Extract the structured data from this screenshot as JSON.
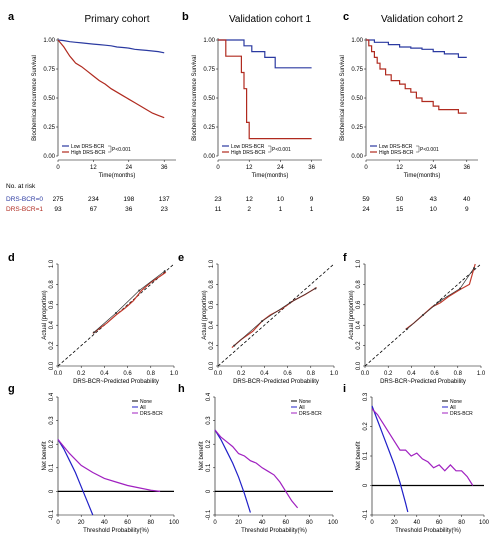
{
  "chart_data": [
    {
      "panel": "a",
      "type": "line",
      "title": "Primary cohort",
      "xlabel": "Time(months)",
      "ylabel": "Biochemical recurrence Survival",
      "xlim": [
        0,
        40
      ],
      "ylim": [
        0,
        1
      ],
      "xticks": [
        "0",
        "12",
        "24",
        "36"
      ],
      "yticks": [
        "0.00",
        "0.25",
        "0.50",
        "0.75",
        "1.00"
      ],
      "series": [
        {
          "name": "Low DRS-BCR",
          "color": "#2b3aa1",
          "x": [
            0,
            2,
            4,
            6,
            8,
            10,
            12,
            14,
            16,
            18,
            20,
            22,
            24,
            26,
            28,
            30,
            32,
            34,
            36
          ],
          "y": [
            1.0,
            0.995,
            0.985,
            0.98,
            0.975,
            0.97,
            0.965,
            0.96,
            0.955,
            0.95,
            0.94,
            0.935,
            0.93,
            0.92,
            0.915,
            0.91,
            0.905,
            0.9,
            0.89
          ]
        },
        {
          "name": "High DRS-BCR",
          "color": "#b02a1f",
          "x": [
            0,
            1,
            2,
            3,
            4,
            5,
            6,
            8,
            10,
            12,
            14,
            16,
            18,
            20,
            22,
            24,
            26,
            28,
            30,
            32,
            34,
            35,
            36
          ],
          "y": [
            1.0,
            0.97,
            0.94,
            0.9,
            0.86,
            0.83,
            0.8,
            0.77,
            0.73,
            0.69,
            0.65,
            0.62,
            0.58,
            0.55,
            0.52,
            0.49,
            0.46,
            0.43,
            0.4,
            0.37,
            0.35,
            0.34,
            0.33
          ]
        }
      ],
      "pvalue": "P<0.001",
      "risk_table": {
        "title": "No. at risk",
        "rows": [
          {
            "label": "DRS-BCR=0",
            "color": "#2b3aa1",
            "values": [
              "275",
              "234",
              "198",
              "137"
            ]
          },
          {
            "label": "DRS-BCR=1",
            "color": "#b02a1f",
            "values": [
              "93",
              "67",
              "36",
              "23"
            ]
          }
        ]
      }
    },
    {
      "panel": "b",
      "type": "line",
      "title": "Validation cohort 1",
      "xlabel": "Time(months)",
      "ylabel": "Biochemical recurrence Survival",
      "xlim": [
        0,
        40
      ],
      "ylim": [
        0,
        1
      ],
      "xticks": [
        "0",
        "12",
        "24",
        "36"
      ],
      "yticks": [
        "0.00",
        "0.25",
        "0.50",
        "0.75",
        "1.00"
      ],
      "series": [
        {
          "name": "Low DRS-BCR",
          "color": "#2b3aa1",
          "x": [
            0,
            10,
            10,
            13,
            13,
            18,
            18,
            22,
            22,
            36
          ],
          "y": [
            1.0,
            1.0,
            0.95,
            0.95,
            0.9,
            0.9,
            0.85,
            0.85,
            0.76,
            0.76
          ]
        },
        {
          "name": "High DRS-BCR",
          "color": "#b02a1f",
          "x": [
            0,
            3,
            3,
            9,
            9,
            10,
            10,
            11,
            11,
            12,
            12,
            36
          ],
          "y": [
            1.0,
            1.0,
            0.86,
            0.86,
            0.72,
            0.72,
            0.58,
            0.58,
            0.29,
            0.29,
            0.15,
            0.15
          ]
        }
      ],
      "pvalue": "P<0.001",
      "risk_table": {
        "rows": [
          {
            "values": [
              "23",
              "12",
              "10",
              "9"
            ]
          },
          {
            "values": [
              "11",
              "2",
              "1",
              "1"
            ]
          }
        ]
      }
    },
    {
      "panel": "c",
      "type": "line",
      "title": "Validation cohort 2",
      "xlabel": "Time(months)",
      "ylabel": "Biochemical recurrence Survival",
      "xlim": [
        0,
        40
      ],
      "ylim": [
        0,
        1
      ],
      "xticks": [
        "0",
        "12",
        "24",
        "36"
      ],
      "yticks": [
        "0.00",
        "0.25",
        "0.50",
        "0.75",
        "1.00"
      ],
      "series": [
        {
          "name": "Low DRS-BCR",
          "color": "#2b3aa1",
          "x": [
            0,
            3,
            3,
            8,
            8,
            12,
            12,
            16,
            16,
            20,
            20,
            24,
            24,
            28,
            28,
            33,
            33,
            36
          ],
          "y": [
            1.0,
            1.0,
            0.98,
            0.98,
            0.96,
            0.96,
            0.94,
            0.94,
            0.93,
            0.93,
            0.92,
            0.92,
            0.9,
            0.9,
            0.88,
            0.88,
            0.85,
            0.85
          ]
        },
        {
          "name": "High DRS-BCR",
          "color": "#b02a1f",
          "x": [
            0,
            1,
            1,
            2,
            2,
            3,
            3,
            4,
            4,
            5,
            5,
            7,
            7,
            9,
            9,
            12,
            12,
            14,
            14,
            16,
            16,
            18,
            18,
            20,
            20,
            24,
            24,
            26,
            26,
            33,
            33,
            36
          ],
          "y": [
            1.0,
            1.0,
            0.95,
            0.95,
            0.9,
            0.9,
            0.85,
            0.85,
            0.8,
            0.8,
            0.75,
            0.75,
            0.7,
            0.7,
            0.65,
            0.65,
            0.62,
            0.62,
            0.58,
            0.58,
            0.55,
            0.55,
            0.5,
            0.5,
            0.47,
            0.47,
            0.43,
            0.43,
            0.4,
            0.4,
            0.37,
            0.37
          ]
        }
      ],
      "pvalue": "P<0.001",
      "risk_table": {
        "rows": [
          {
            "values": [
              "59",
              "50",
              "43",
              "40"
            ]
          },
          {
            "values": [
              "24",
              "15",
              "10",
              "9"
            ]
          }
        ]
      }
    },
    {
      "panel": "d",
      "type": "line",
      "xlabel": "DRS-BCR~Predicted Probability",
      "ylabel": "Actual (proportion)",
      "xlim": [
        0,
        1
      ],
      "ylim": [
        0,
        1
      ],
      "xticks": [
        "0.0",
        "0.2",
        "0.4",
        "0.6",
        "0.8",
        "1.0"
      ],
      "yticks": [
        "0.0",
        "0.2",
        "0.4",
        "0.6",
        "0.8",
        "1.0"
      ],
      "series": [
        {
          "role": "calibration",
          "color": "#c0392b",
          "x": [
            0.3,
            0.42,
            0.5,
            0.58,
            0.65,
            0.72,
            0.8,
            0.88,
            0.93
          ],
          "y": [
            0.32,
            0.42,
            0.5,
            0.57,
            0.64,
            0.74,
            0.82,
            0.88,
            0.92
          ]
        },
        {
          "role": "observed",
          "color": "#333333",
          "x": [
            0.31,
            0.5,
            0.7,
            0.92
          ],
          "y": [
            0.33,
            0.52,
            0.74,
            0.93
          ]
        }
      ]
    },
    {
      "panel": "e",
      "type": "line",
      "xlabel": "DRS-BCR~Predicted Probability",
      "ylabel": "Actual (proportion)",
      "xlim": [
        0,
        1
      ],
      "ylim": [
        0,
        1
      ],
      "xticks": [
        "0.0",
        "0.2",
        "0.4",
        "0.6",
        "0.8",
        "1.0"
      ],
      "yticks": [
        "0.0",
        "0.2",
        "0.4",
        "0.6",
        "0.8",
        "1.0"
      ],
      "series": [
        {
          "role": "calibration",
          "color": "#c0392b",
          "x": [
            0.12,
            0.2,
            0.3,
            0.38,
            0.45,
            0.55,
            0.65,
            0.75,
            0.85
          ],
          "y": [
            0.18,
            0.26,
            0.34,
            0.44,
            0.5,
            0.56,
            0.64,
            0.7,
            0.77
          ]
        },
        {
          "role": "observed",
          "color": "#333333",
          "x": [
            0.14,
            0.38,
            0.62,
            0.84
          ],
          "y": [
            0.2,
            0.44,
            0.62,
            0.76
          ]
        }
      ]
    },
    {
      "panel": "f",
      "type": "line",
      "xlabel": "DRS-BCR~Predicted Probability",
      "ylabel": "Actual (proportion)",
      "xlim": [
        0,
        1
      ],
      "ylim": [
        0,
        1
      ],
      "xticks": [
        "0.0",
        "0.2",
        "0.4",
        "0.6",
        "0.8",
        "1.0"
      ],
      "yticks": [
        "0.0",
        "0.2",
        "0.4",
        "0.6",
        "0.8",
        "1.0"
      ],
      "series": [
        {
          "role": "calibration",
          "color": "#c0392b",
          "x": [
            0.35,
            0.42,
            0.5,
            0.58,
            0.65,
            0.72,
            0.82,
            0.9,
            0.95
          ],
          "y": [
            0.36,
            0.42,
            0.5,
            0.58,
            0.62,
            0.68,
            0.75,
            0.8,
            1.0
          ]
        },
        {
          "role": "observed",
          "color": "#333333",
          "x": [
            0.36,
            0.5,
            0.65,
            0.82,
            0.94
          ],
          "y": [
            0.36,
            0.5,
            0.64,
            0.76,
            0.96
          ]
        }
      ]
    },
    {
      "panel": "g",
      "type": "line",
      "xlabel": "Threshold Probability(%)",
      "ylabel": "Net benefit",
      "xlim": [
        0,
        100
      ],
      "ylim": [
        -0.1,
        0.4
      ],
      "xticks": [
        "0",
        "20",
        "40",
        "60",
        "80",
        "100"
      ],
      "yticks": [
        "-0.1",
        "0",
        "0.1",
        "0.2",
        "0.3",
        "0.4"
      ],
      "series": [
        {
          "name": "None",
          "color": "#000000",
          "x": [
            0,
            100
          ],
          "y": [
            0,
            0
          ]
        },
        {
          "name": "All",
          "color": "#2020c8",
          "x": [
            0,
            5,
            10,
            15,
            20,
            25,
            30
          ],
          "y": [
            0.22,
            0.18,
            0.13,
            0.08,
            0.02,
            -0.04,
            -0.1
          ]
        },
        {
          "name": "DRS-BCR",
          "color": "#a020c0",
          "x": [
            0,
            5,
            10,
            20,
            30,
            40,
            50,
            60,
            70,
            80,
            88
          ],
          "y": [
            0.22,
            0.19,
            0.16,
            0.11,
            0.08,
            0.055,
            0.04,
            0.025,
            0.015,
            0.005,
            0.0
          ]
        }
      ]
    },
    {
      "panel": "h",
      "type": "line",
      "xlabel": "Threshold Probability(%)",
      "ylabel": "Net benefit",
      "xlim": [
        0,
        100
      ],
      "ylim": [
        -0.1,
        0.4
      ],
      "xticks": [
        "0",
        "20",
        "40",
        "60",
        "80",
        "100"
      ],
      "yticks": [
        "-0.1",
        "0",
        "0.1",
        "0.2",
        "0.3",
        "0.4"
      ],
      "series": [
        {
          "name": "None",
          "color": "#000000",
          "x": [
            0,
            100
          ],
          "y": [
            0,
            0
          ]
        },
        {
          "name": "All",
          "color": "#2020c8",
          "x": [
            0,
            5,
            10,
            15,
            20,
            25,
            30
          ],
          "y": [
            0.26,
            0.22,
            0.17,
            0.12,
            0.06,
            -0.01,
            -0.09
          ]
        },
        {
          "name": "DRS-BCR",
          "color": "#a020c0",
          "x": [
            0,
            5,
            10,
            15,
            20,
            25,
            30,
            35,
            40,
            45,
            50,
            55,
            60,
            65,
            70
          ],
          "y": [
            0.26,
            0.23,
            0.21,
            0.19,
            0.16,
            0.15,
            0.13,
            0.12,
            0.1,
            0.085,
            0.07,
            0.04,
            0.0,
            -0.04,
            -0.07
          ]
        }
      ]
    },
    {
      "panel": "i",
      "type": "line",
      "xlabel": "Threshold Probability(%)",
      "ylabel": "Net benefit",
      "xlim": [
        0,
        100
      ],
      "ylim": [
        -0.1,
        0.3
      ],
      "xticks": [
        "0",
        "20",
        "40",
        "60",
        "80",
        "100"
      ],
      "yticks": [
        "-0.1",
        "0",
        "0.1",
        "0.2",
        "0.3"
      ],
      "series": [
        {
          "name": "None",
          "color": "#000000",
          "x": [
            0,
            100
          ],
          "y": [
            0,
            0
          ]
        },
        {
          "name": "All",
          "color": "#2020c8",
          "x": [
            0,
            5,
            10,
            15,
            20,
            25,
            30,
            32
          ],
          "y": [
            0.27,
            0.22,
            0.17,
            0.12,
            0.07,
            0.01,
            -0.06,
            -0.09
          ]
        },
        {
          "name": "DRS-BCR",
          "color": "#a020c0",
          "x": [
            0,
            5,
            10,
            15,
            20,
            25,
            30,
            35,
            40,
            45,
            50,
            55,
            60,
            65,
            70,
            75,
            80,
            85,
            90
          ],
          "y": [
            0.26,
            0.24,
            0.21,
            0.18,
            0.15,
            0.12,
            0.12,
            0.1,
            0.11,
            0.09,
            0.08,
            0.06,
            0.07,
            0.05,
            0.07,
            0.05,
            0.05,
            0.03,
            0.0
          ]
        }
      ]
    }
  ]
}
